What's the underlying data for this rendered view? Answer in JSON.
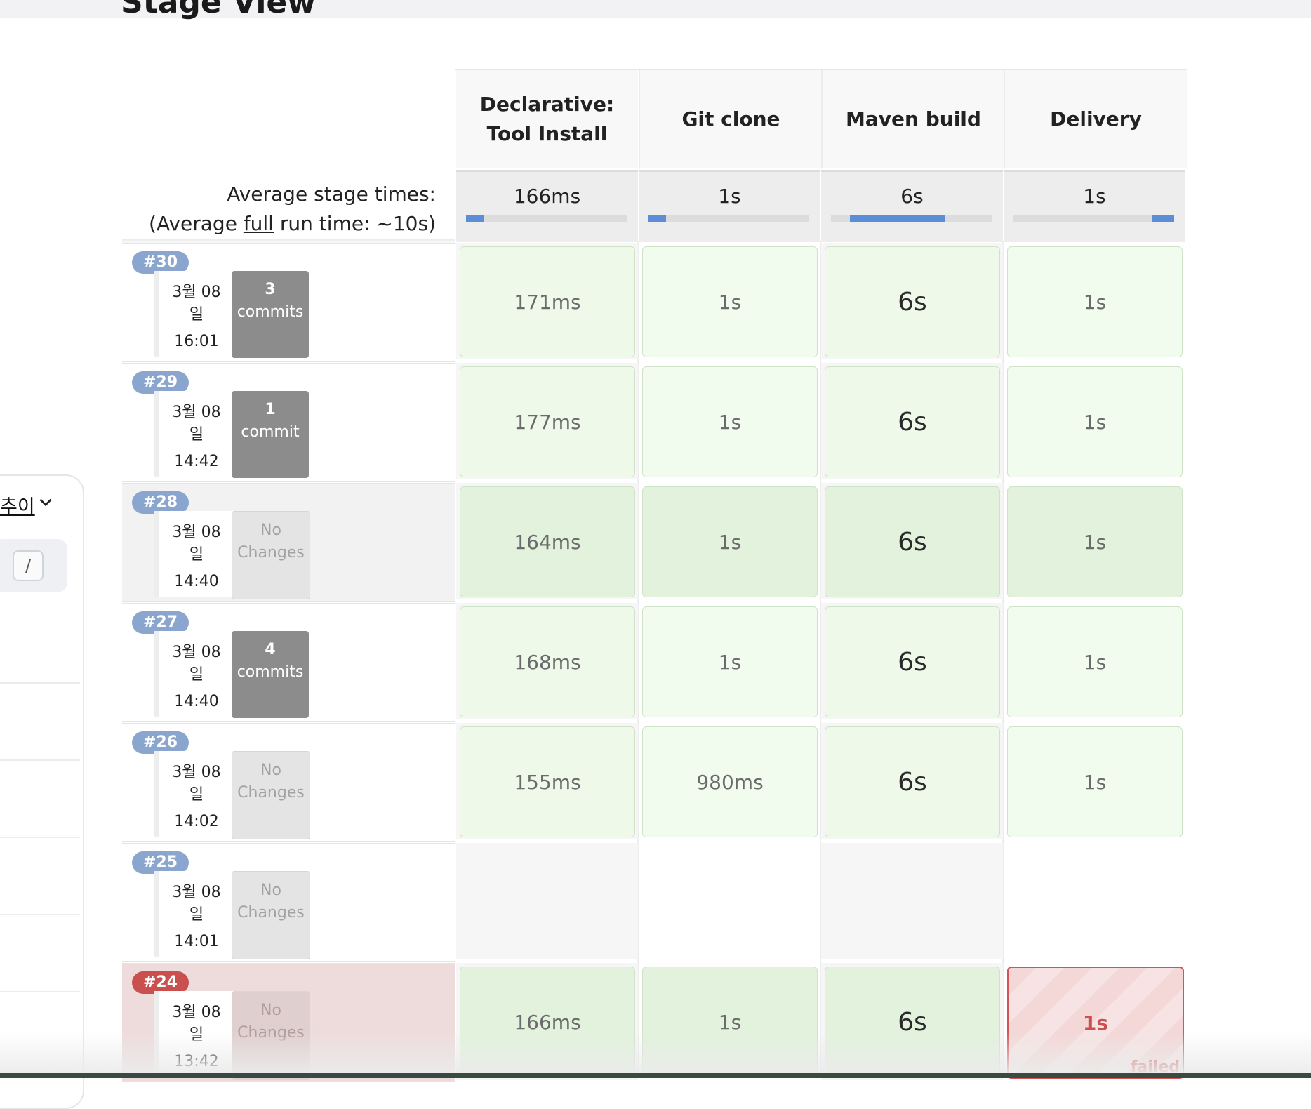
{
  "page": {
    "heading": "Stage View"
  },
  "sidebar": {
    "dropdown_text": "추이",
    "input_shortcut": "/"
  },
  "summary": {
    "avg_stage_label": "Average stage times:",
    "avg_full_prefix": "(Average ",
    "avg_full_link": "full",
    "avg_full_suffix": " run time: ~10s)"
  },
  "stages": [
    {
      "name_line1": "Declarative:",
      "name_line2": "Tool Install",
      "avg": "166ms",
      "bar_start": 0.0,
      "bar_fraction": 0.11
    },
    {
      "name_line1": "Git clone",
      "name_line2": "",
      "avg": "1s",
      "bar_start": 0.0,
      "bar_fraction": 0.11
    },
    {
      "name_line1": "Maven build",
      "name_line2": "",
      "avg": "6s",
      "bar_start": 0.12,
      "bar_fraction": 0.59
    },
    {
      "name_line1": "Delivery",
      "name_line2": "",
      "avg": "1s",
      "bar_start": 0.86,
      "bar_fraction": 0.14
    }
  ],
  "builds": [
    {
      "number": "#30",
      "date_line1": "3월 08",
      "date_line2": "일",
      "time": "16:01",
      "changes_count": "3",
      "changes_label": "commits",
      "has_changes": true,
      "row_style": "normal",
      "cell_style": "normal",
      "stage_times": [
        "171ms",
        "1s",
        "6s",
        "1s"
      ]
    },
    {
      "number": "#29",
      "date_line1": "3월 08",
      "date_line2": "일",
      "time": "14:42",
      "changes_count": "1",
      "changes_label": "commit",
      "has_changes": true,
      "row_style": "normal",
      "cell_style": "normal",
      "stage_times": [
        "177ms",
        "1s",
        "6s",
        "1s"
      ]
    },
    {
      "number": "#28",
      "date_line1": "3월 08",
      "date_line2": "일",
      "time": "14:40",
      "changes_count": "No",
      "changes_label": "Changes",
      "has_changes": false,
      "row_style": "shaded",
      "cell_style": "dark",
      "stage_times": [
        "164ms",
        "1s",
        "6s",
        "1s"
      ]
    },
    {
      "number": "#27",
      "date_line1": "3월 08",
      "date_line2": "일",
      "time": "14:40",
      "changes_count": "4",
      "changes_label": "commits",
      "has_changes": true,
      "row_style": "normal",
      "cell_style": "normal",
      "stage_times": [
        "168ms",
        "1s",
        "6s",
        "1s"
      ]
    },
    {
      "number": "#26",
      "date_line1": "3월 08",
      "date_line2": "일",
      "time": "14:02",
      "changes_count": "No",
      "changes_label": "Changes",
      "has_changes": false,
      "row_style": "normal",
      "cell_style": "normal",
      "stage_times": [
        "155ms",
        "980ms",
        "6s",
        "1s"
      ]
    },
    {
      "number": "#25",
      "date_line1": "3월 08",
      "date_line2": "일",
      "time": "14:01",
      "changes_count": "No",
      "changes_label": "Changes",
      "has_changes": false,
      "row_style": "normal",
      "cell_style": "empty",
      "stage_times": []
    },
    {
      "number": "#24",
      "date_line1": "3월 08",
      "date_line2": "일",
      "time": "13:42",
      "changes_count": "No",
      "changes_label": "Changes",
      "has_changes": false,
      "row_style": "failed",
      "cell_style": "dark",
      "stage_times": [
        "166ms",
        "1s",
        "6s",
        "1s"
      ],
      "failed_stage_index": 3,
      "failed_label": "failed"
    }
  ],
  "colors": {
    "badge": "#8aa6cf",
    "badge_failed": "#c9504e",
    "success_cell": "#eef9e9",
    "fail_border": "#d45454",
    "progress": "#5b8ed6"
  }
}
